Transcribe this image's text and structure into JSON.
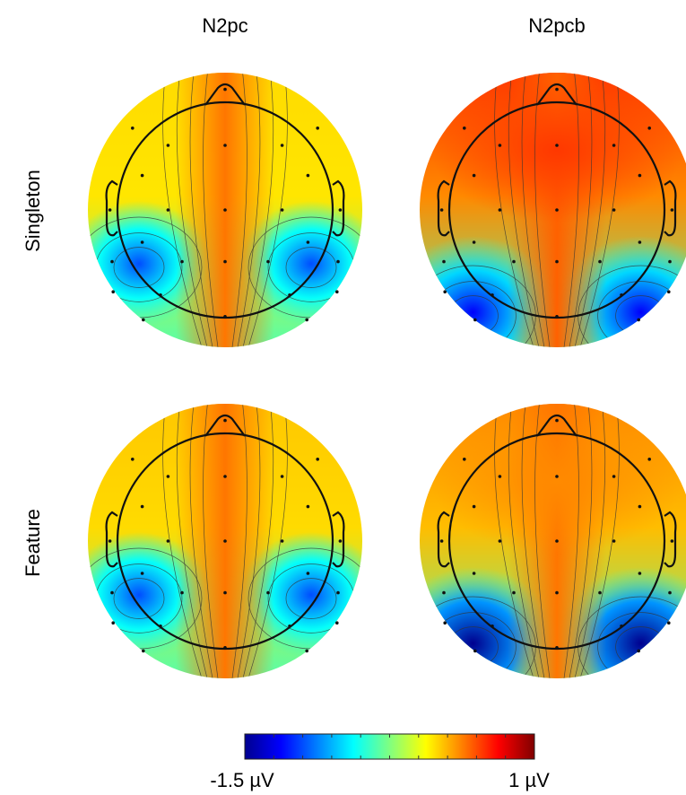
{
  "chart_data": {
    "type": "heatmap",
    "columns": [
      "N2pc",
      "N2pcb"
    ],
    "rows": [
      "Singleton",
      "Feature"
    ],
    "colorbar": {
      "min": -1.5,
      "max": 1,
      "min_label": "-1.5 µV",
      "max_label": "1 µV",
      "colormap": "jet",
      "colors": [
        "#00008f",
        "#0000ff",
        "#0080ff",
        "#00ffff",
        "#80ff80",
        "#ffff00",
        "#ff8000",
        "#ff0000",
        "#800000"
      ]
    },
    "maps": [
      {
        "row": "Singleton",
        "column": "N2pc",
        "frontal": 0.15,
        "midline": 0.4,
        "lateral_minimum": -1.0,
        "lateral_focus": "parieto-occipital"
      },
      {
        "row": "Singleton",
        "column": "N2pcb",
        "frontal": 0.55,
        "midline": 0.45,
        "lateral_minimum": -1.2,
        "lateral_focus": "occipital"
      },
      {
        "row": "Feature",
        "column": "N2pc",
        "frontal": 0.2,
        "midline": 0.4,
        "lateral_minimum": -1.0,
        "lateral_focus": "parieto-occipital"
      },
      {
        "row": "Feature",
        "column": "N2pcb",
        "frontal": 0.35,
        "midline": 0.4,
        "lateral_minimum": -1.5,
        "lateral_focus": "occipital"
      }
    ],
    "grid": false,
    "legend": "colorbar-bottom"
  }
}
